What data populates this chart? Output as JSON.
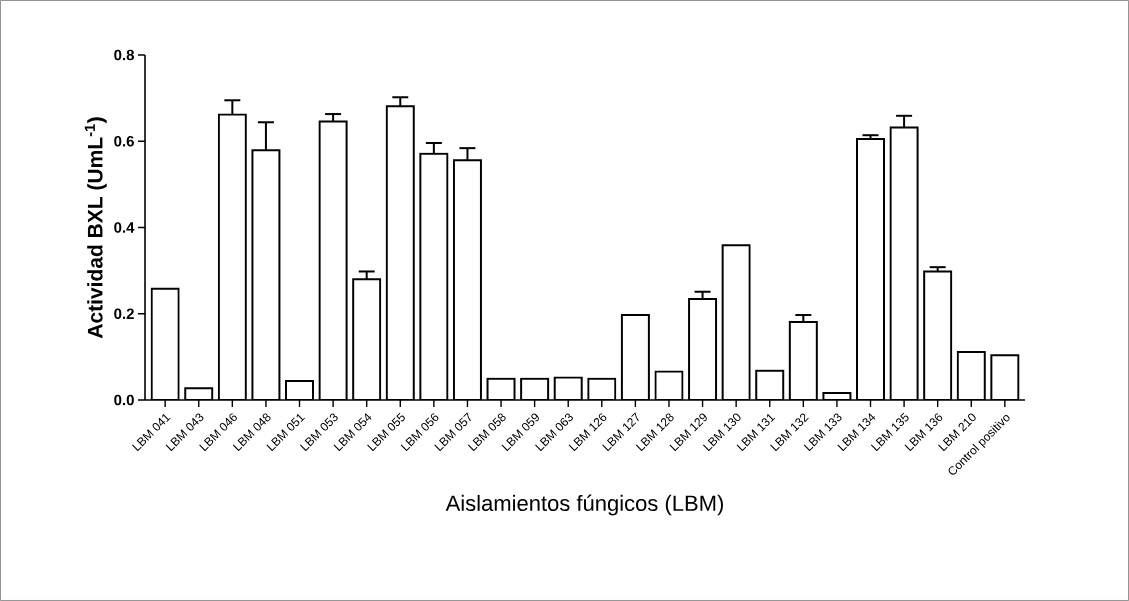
{
  "chart_data": {
    "type": "bar",
    "ylabel": "Actividad BXL (UmL$^{-1}$)",
    "xlabel": "Aislamientos fúngicos (LBM)",
    "categories": [
      "LBM 041",
      "LBM 043",
      "LBM 046",
      "LBM 048",
      "LBM 051",
      "LBM 053",
      "LBM 054",
      "LBM 055",
      "LBM 056",
      "LBM 057",
      "LBM 058",
      "LBM 059",
      "LBM 063",
      "LBM 126",
      "LBM 127",
      "LBM 128",
      "LBM 129",
      "LBM 130",
      "LBM 131",
      "LBM 132",
      "LBM 133",
      "LBM 134",
      "LBM 135",
      "LBM 136",
      "LBM 210",
      "Control positivo"
    ],
    "values": [
      0.258,
      0.027,
      0.662,
      0.579,
      0.044,
      0.646,
      0.28,
      0.681,
      0.571,
      0.556,
      0.049,
      0.049,
      0.052,
      0.049,
      0.197,
      0.066,
      0.234,
      0.359,
      0.068,
      0.181,
      0.016,
      0.605,
      0.632,
      0.298,
      0.111,
      0.104
    ],
    "errors": [
      null,
      null,
      0.033,
      0.065,
      null,
      0.017,
      0.018,
      0.021,
      0.025,
      0.028,
      null,
      null,
      null,
      null,
      null,
      null,
      0.017,
      null,
      null,
      0.016,
      null,
      0.009,
      0.027,
      0.01,
      null,
      null
    ],
    "color": "#000000",
    "ylim": [
      0,
      0.8
    ],
    "yticks": [
      {
        "value": 0,
        "label": "0.0"
      },
      {
        "value": 0.2,
        "label": "0.2"
      },
      {
        "value": 0.4,
        "label": "0.4"
      },
      {
        "value": 0.6,
        "label": "0.6"
      },
      {
        "value": 0.8,
        "label": "0.8"
      }
    ],
    "grid": false
  }
}
